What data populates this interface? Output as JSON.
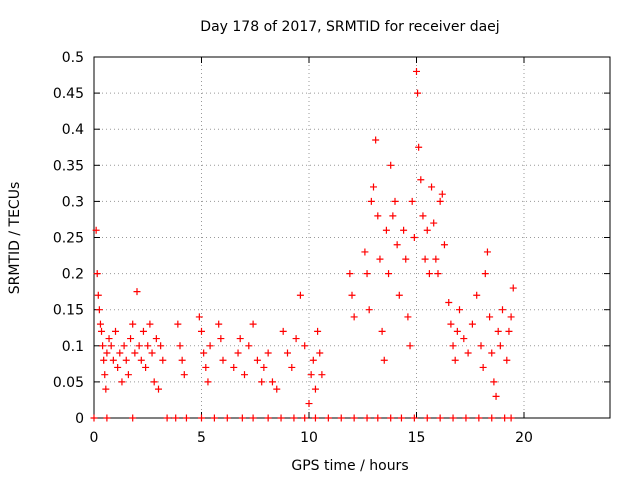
{
  "chart_data": {
    "type": "scatter",
    "title": "Day 178 of 2017, SRMTID for receiver daej",
    "xlabel": "GPS time / hours",
    "ylabel": "SRMTID / TECUs",
    "xlim": [
      0,
      24
    ],
    "ylim": [
      0,
      0.5
    ],
    "x_ticks": [
      0,
      5,
      10,
      15,
      20
    ],
    "x_tick_labels": [
      "0",
      "5",
      "10",
      "15",
      "20"
    ],
    "y_ticks": [
      0,
      0.05,
      0.1,
      0.15,
      0.2,
      0.25,
      0.3,
      0.35,
      0.4,
      0.45,
      0.5
    ],
    "y_tick_labels": [
      "0",
      "0.05",
      "0.1",
      "0.15",
      "0.2",
      "0.25",
      "0.3",
      "0.35",
      "0.4",
      "0.45",
      "0.5"
    ],
    "grid": true,
    "marker": "+",
    "color": "#ff0000",
    "series": [
      {
        "name": "SRMTID",
        "points": [
          [
            0.1,
            0.26
          ],
          [
            0.15,
            0.2
          ],
          [
            0.2,
            0.17
          ],
          [
            0.25,
            0.15
          ],
          [
            0.3,
            0.13
          ],
          [
            0.35,
            0.12
          ],
          [
            0.4,
            0.1
          ],
          [
            0.45,
            0.08
          ],
          [
            0.5,
            0.06
          ],
          [
            0.55,
            0.04
          ],
          [
            0.6,
            0.09
          ],
          [
            0.7,
            0.11
          ],
          [
            0.8,
            0.1
          ],
          [
            0.9,
            0.08
          ],
          [
            1.0,
            0.12
          ],
          [
            1.1,
            0.07
          ],
          [
            1.2,
            0.09
          ],
          [
            1.3,
            0.05
          ],
          [
            1.4,
            0.1
          ],
          [
            1.5,
            0.08
          ],
          [
            1.6,
            0.06
          ],
          [
            1.7,
            0.11
          ],
          [
            1.8,
            0.13
          ],
          [
            1.9,
            0.09
          ],
          [
            2.0,
            0.175
          ],
          [
            2.1,
            0.1
          ],
          [
            2.2,
            0.08
          ],
          [
            2.3,
            0.12
          ],
          [
            2.4,
            0.07
          ],
          [
            2.5,
            0.1
          ],
          [
            2.6,
            0.13
          ],
          [
            2.7,
            0.09
          ],
          [
            2.8,
            0.05
          ],
          [
            2.9,
            0.11
          ],
          [
            3.0,
            0.04
          ],
          [
            3.1,
            0.1
          ],
          [
            3.2,
            0.08
          ],
          [
            3.9,
            0.13
          ],
          [
            4.0,
            0.1
          ],
          [
            4.1,
            0.08
          ],
          [
            4.2,
            0.06
          ],
          [
            4.9,
            0.14
          ],
          [
            5.0,
            0.12
          ],
          [
            5.1,
            0.09
          ],
          [
            5.2,
            0.07
          ],
          [
            5.3,
            0.05
          ],
          [
            5.4,
            0.1
          ],
          [
            5.8,
            0.13
          ],
          [
            5.9,
            0.11
          ],
          [
            6.0,
            0.08
          ],
          [
            6.5,
            0.07
          ],
          [
            6.7,
            0.09
          ],
          [
            6.8,
            0.11
          ],
          [
            7.0,
            0.06
          ],
          [
            7.2,
            0.1
          ],
          [
            7.4,
            0.13
          ],
          [
            7.6,
            0.08
          ],
          [
            7.8,
            0.05
          ],
          [
            7.9,
            0.07
          ],
          [
            8.1,
            0.09
          ],
          [
            8.3,
            0.05
          ],
          [
            8.5,
            0.04
          ],
          [
            8.8,
            0.12
          ],
          [
            9.0,
            0.09
          ],
          [
            9.2,
            0.07
          ],
          [
            9.4,
            0.11
          ],
          [
            9.6,
            0.17
          ],
          [
            9.8,
            0.1
          ],
          [
            10.0,
            0.02
          ],
          [
            10.1,
            0.06
          ],
          [
            10.2,
            0.08
          ],
          [
            10.3,
            0.04
          ],
          [
            10.4,
            0.12
          ],
          [
            10.5,
            0.09
          ],
          [
            10.6,
            0.06
          ],
          [
            11.9,
            0.2
          ],
          [
            12.0,
            0.17
          ],
          [
            12.1,
            0.14
          ],
          [
            12.6,
            0.23
          ],
          [
            12.7,
            0.2
          ],
          [
            12.8,
            0.15
          ],
          [
            12.9,
            0.3
          ],
          [
            13.0,
            0.32
          ],
          [
            13.1,
            0.385
          ],
          [
            13.2,
            0.28
          ],
          [
            13.3,
            0.22
          ],
          [
            13.4,
            0.12
          ],
          [
            13.5,
            0.08
          ],
          [
            13.6,
            0.26
          ],
          [
            13.7,
            0.2
          ],
          [
            13.8,
            0.35
          ],
          [
            13.9,
            0.28
          ],
          [
            14.0,
            0.3
          ],
          [
            14.1,
            0.24
          ],
          [
            14.2,
            0.17
          ],
          [
            14.4,
            0.26
          ],
          [
            14.5,
            0.22
          ],
          [
            14.6,
            0.14
          ],
          [
            14.7,
            0.1
          ],
          [
            14.8,
            0.3
          ],
          [
            14.9,
            0.25
          ],
          [
            15.0,
            0.48
          ],
          [
            15.05,
            0.45
          ],
          [
            15.1,
            0.375
          ],
          [
            15.2,
            0.33
          ],
          [
            15.3,
            0.28
          ],
          [
            15.4,
            0.22
          ],
          [
            15.5,
            0.26
          ],
          [
            15.6,
            0.2
          ],
          [
            15.7,
            0.32
          ],
          [
            15.8,
            0.27
          ],
          [
            15.9,
            0.22
          ],
          [
            16.0,
            0.2
          ],
          [
            16.1,
            0.3
          ],
          [
            16.2,
            0.31
          ],
          [
            16.3,
            0.24
          ],
          [
            16.5,
            0.16
          ],
          [
            16.6,
            0.13
          ],
          [
            16.7,
            0.1
          ],
          [
            16.8,
            0.08
          ],
          [
            16.9,
            0.12
          ],
          [
            17.0,
            0.15
          ],
          [
            17.2,
            0.11
          ],
          [
            17.4,
            0.09
          ],
          [
            17.6,
            0.13
          ],
          [
            17.8,
            0.17
          ],
          [
            18.0,
            0.1
          ],
          [
            18.1,
            0.07
          ],
          [
            18.2,
            0.2
          ],
          [
            18.3,
            0.23
          ],
          [
            18.4,
            0.14
          ],
          [
            18.5,
            0.09
          ],
          [
            18.6,
            0.05
          ],
          [
            18.7,
            0.03
          ],
          [
            18.8,
            0.12
          ],
          [
            18.9,
            0.1
          ],
          [
            19.0,
            0.15
          ],
          [
            19.2,
            0.08
          ],
          [
            19.3,
            0.12
          ],
          [
            19.4,
            0.14
          ],
          [
            19.5,
            0.18
          ],
          [
            0.0,
            0.0
          ],
          [
            0.6,
            0.0
          ],
          [
            1.8,
            0.0
          ],
          [
            3.4,
            0.0
          ],
          [
            3.8,
            0.0
          ],
          [
            4.3,
            0.0
          ],
          [
            5.0,
            0.0
          ],
          [
            5.6,
            0.0
          ],
          [
            6.2,
            0.0
          ],
          [
            6.9,
            0.0
          ],
          [
            7.4,
            0.0
          ],
          [
            8.1,
            0.0
          ],
          [
            8.7,
            0.0
          ],
          [
            9.3,
            0.0
          ],
          [
            9.8,
            0.0
          ],
          [
            10.3,
            0.0
          ],
          [
            10.9,
            0.0
          ],
          [
            11.5,
            0.0
          ],
          [
            12.1,
            0.0
          ],
          [
            12.7,
            0.0
          ],
          [
            13.2,
            0.0
          ],
          [
            13.8,
            0.0
          ],
          [
            14.3,
            0.0
          ],
          [
            14.9,
            0.0
          ],
          [
            15.5,
            0.0
          ],
          [
            16.1,
            0.0
          ],
          [
            16.7,
            0.0
          ],
          [
            17.3,
            0.0
          ],
          [
            17.9,
            0.0
          ],
          [
            18.5,
            0.0
          ],
          [
            19.1,
            0.0
          ],
          [
            19.4,
            0.0
          ]
        ]
      }
    ]
  }
}
